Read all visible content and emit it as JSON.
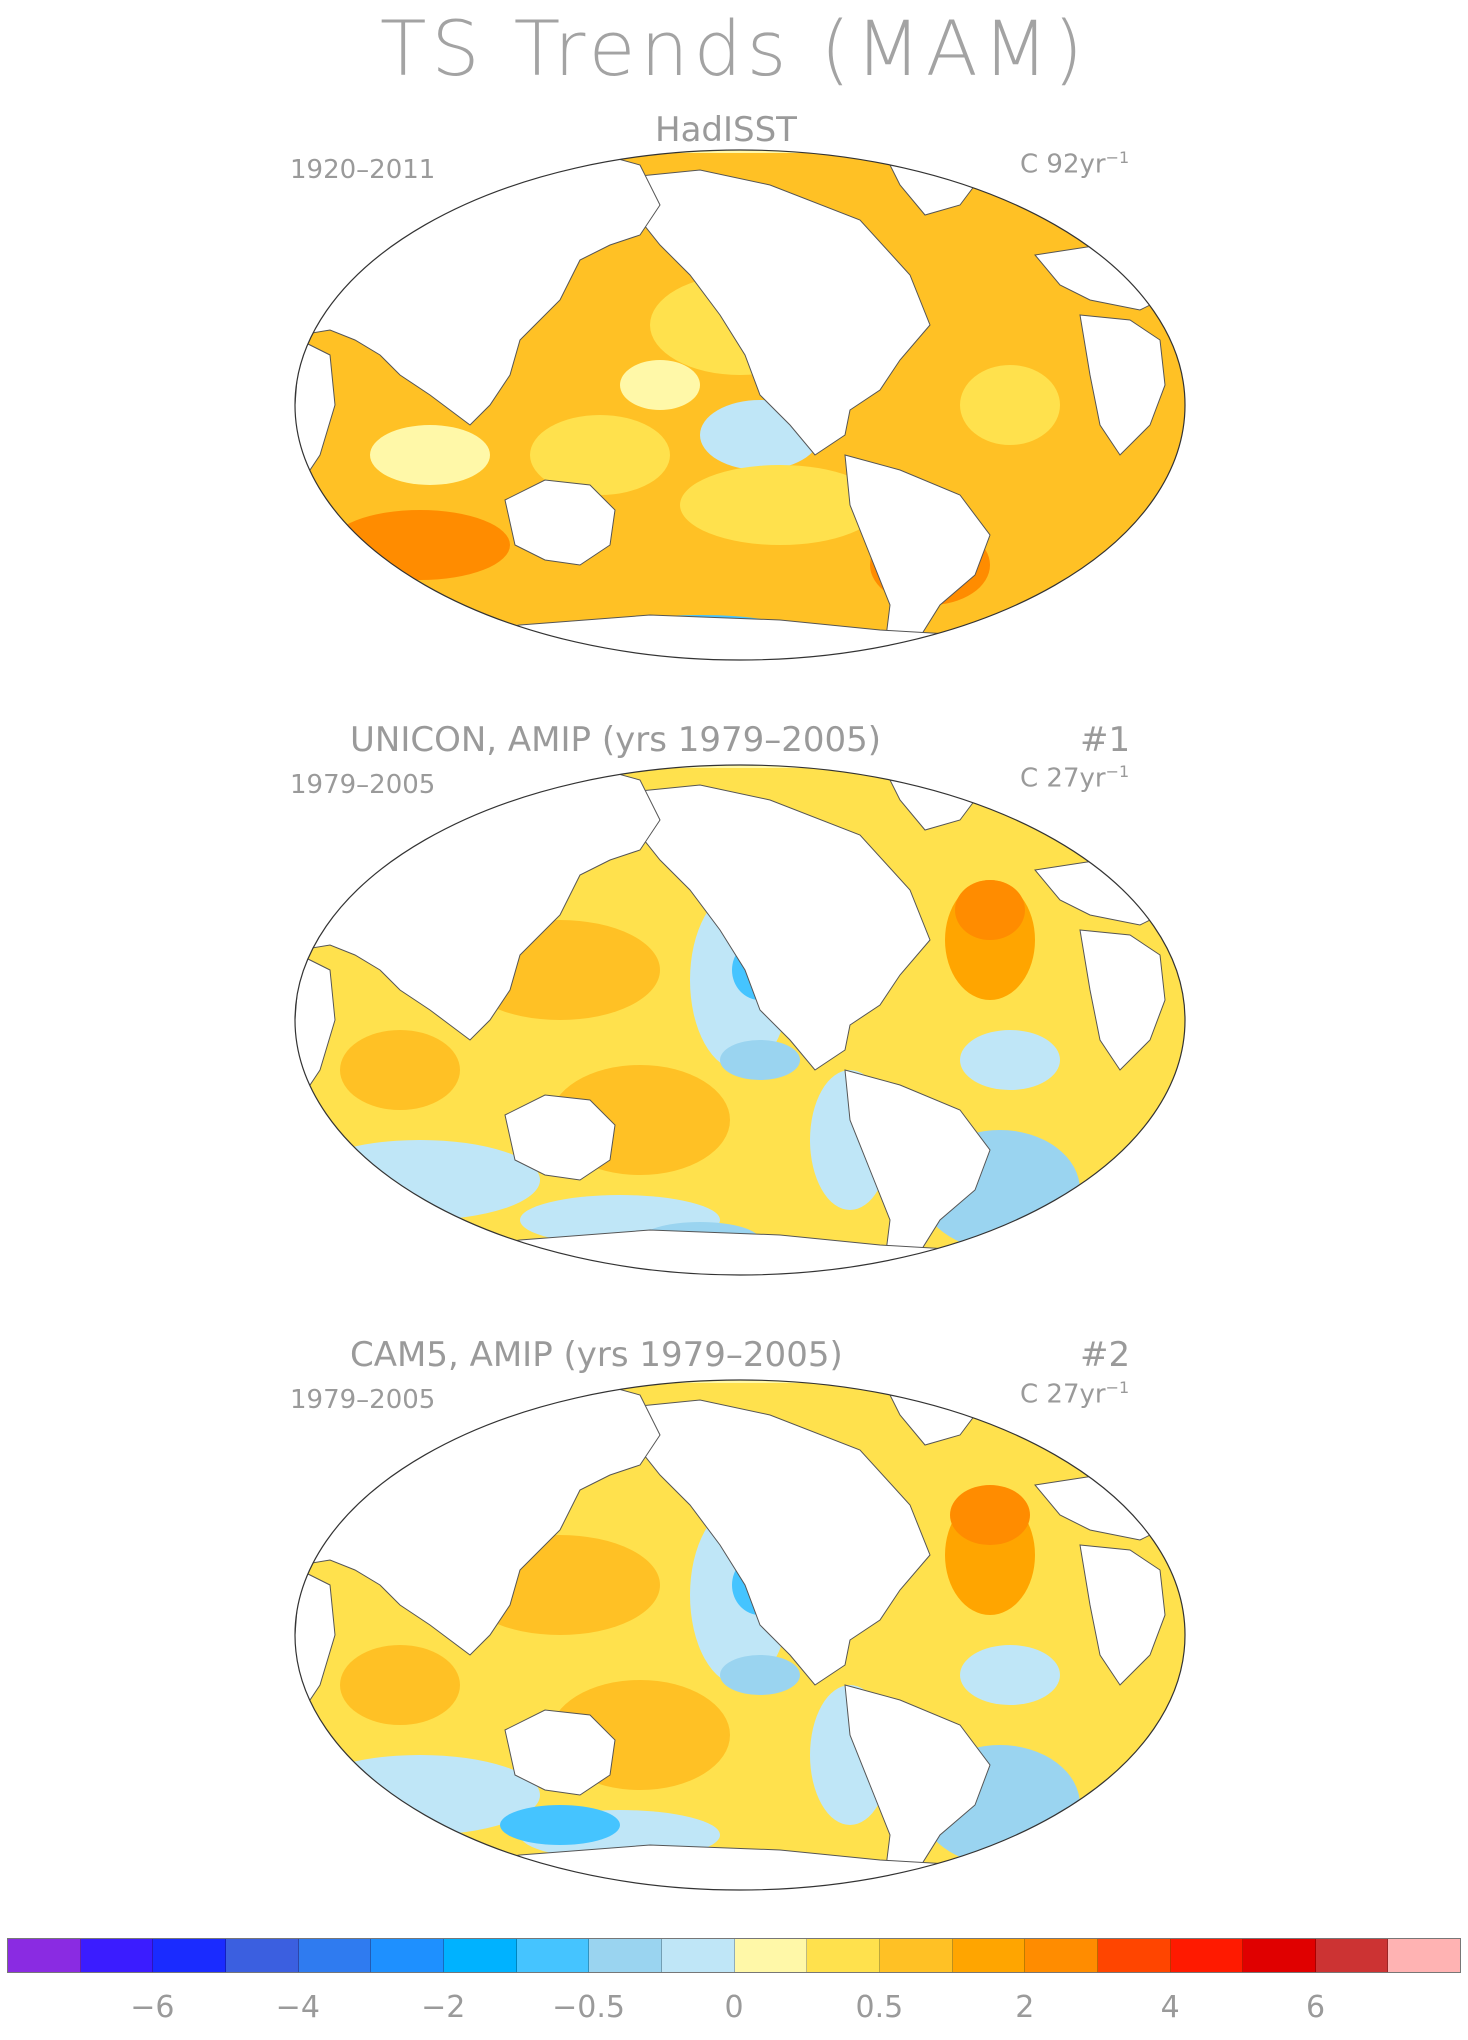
{
  "title": "TS Trends (MAM)",
  "panels": [
    {
      "title": "HadISST",
      "tag": "",
      "period": "1920–2011",
      "units": "C 92yr",
      "units_sup": "−1",
      "variant": 0
    },
    {
      "title": "UNICON, AMIP (yrs 1979–2005)",
      "tag": "#1",
      "period": "1979–2005",
      "units": "C 27yr",
      "units_sup": "−1",
      "variant": 1
    },
    {
      "title": "CAM5, AMIP (yrs 1979–2005)",
      "tag": "#2",
      "period": "1979–2005",
      "units": "C 27yr",
      "units_sup": "−1",
      "variant": 2
    }
  ],
  "colorbar": {
    "colors": [
      "#8a2be2",
      "#3b1cff",
      "#1a2bff",
      "#3b5fe0",
      "#2f7bf0",
      "#1e90ff",
      "#00b2ff",
      "#45c4ff",
      "#9ad4f0",
      "#bfe6f7",
      "#fff8a8",
      "#ffe14d",
      "#ffc125",
      "#ffa500",
      "#ff8c00",
      "#ff4500",
      "#ff1a00",
      "#e00000",
      "#cc3333",
      "#ffb3b3"
    ],
    "tick_labels": [
      "−6",
      "−4",
      "−2",
      "−0.5",
      "0",
      "0.5",
      "2",
      "4",
      "6"
    ]
  }
}
